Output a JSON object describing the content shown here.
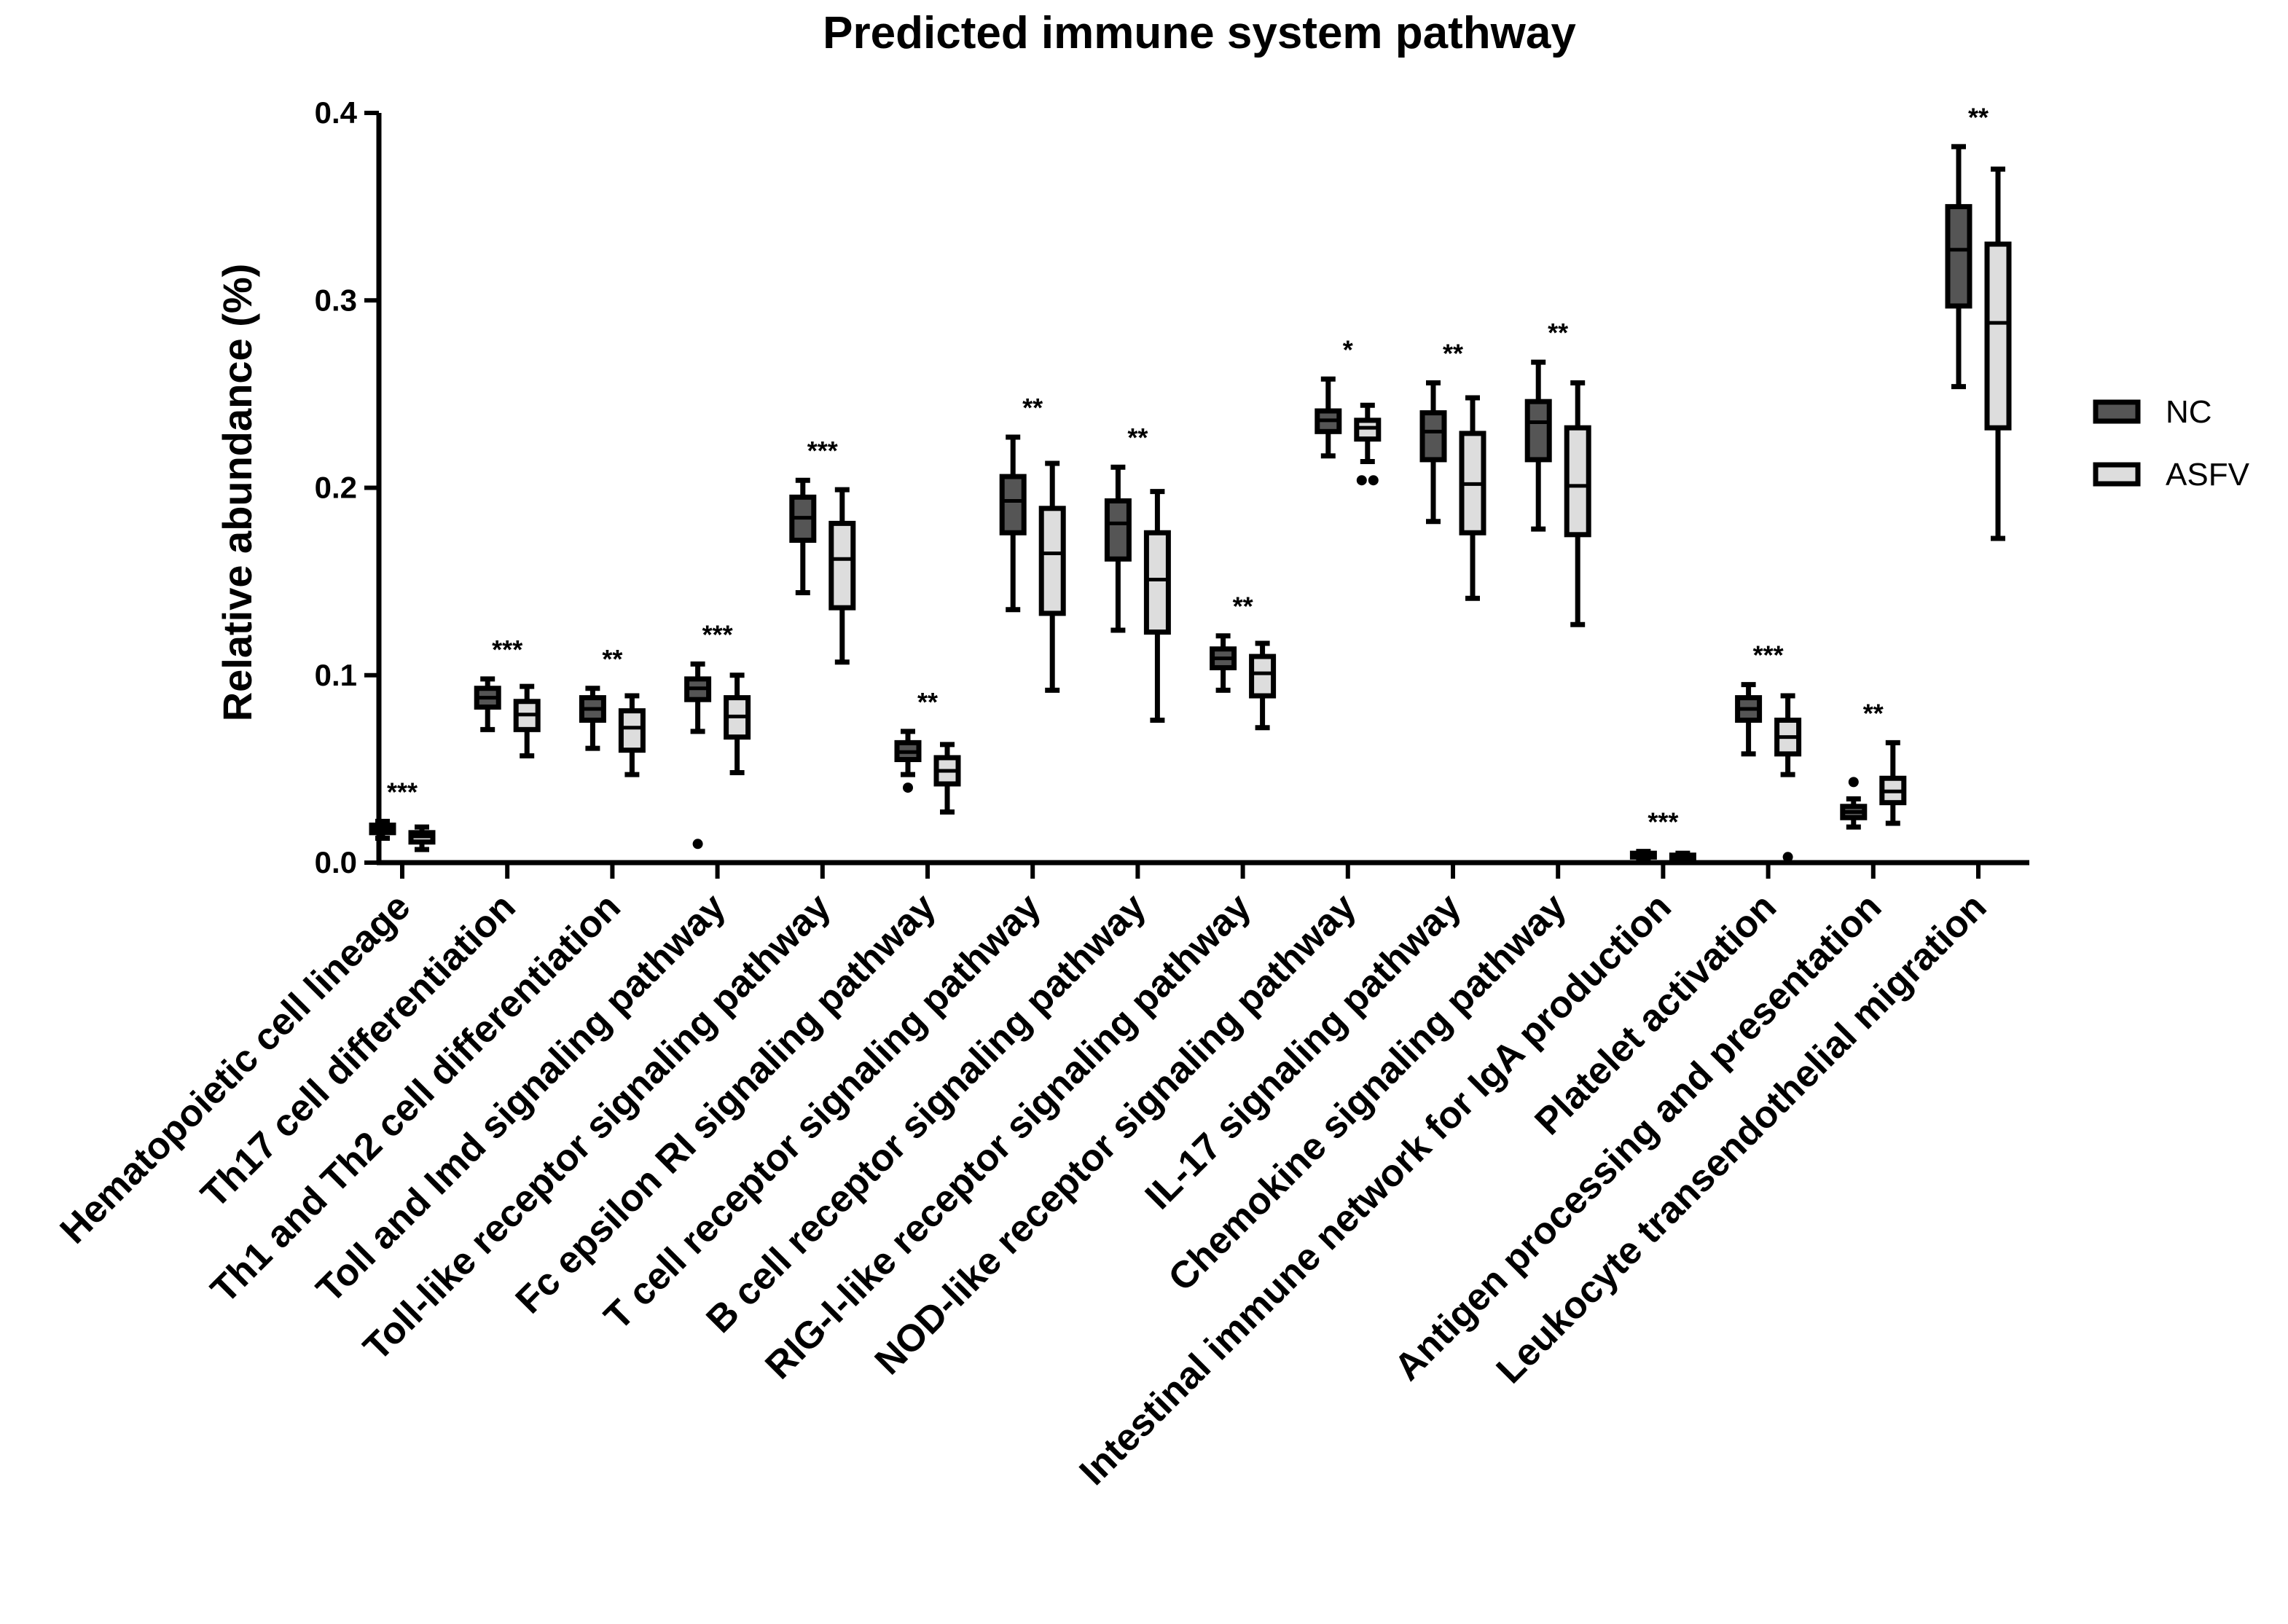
{
  "chart_data": {
    "type": "boxplot",
    "title": "Predicted immune system pathway",
    "xlabel": "",
    "ylabel": "Relative abundance (%)",
    "ylim": [
      0,
      0.4
    ],
    "yticks": [
      "0.0",
      "0.1",
      "0.2",
      "0.3",
      "0.4"
    ],
    "grid": false,
    "legend_position": "right",
    "categories": [
      "Hematopoietic cell lineage",
      "Th17 cell differentiation",
      "Th1 and Th2 cell differentiation",
      "Toll and Imd signaling pathway",
      "Toll-like receptor signaling pathway",
      "Fc epsilon RI signaling pathway",
      "T cell receptor signaling pathway",
      "B cell receptor signaling pathway",
      "RIG-I-like receptor signaling pathway",
      "NOD-like receptor signaling pathway",
      "IL-17 signaling pathway",
      "Chemokine signaling pathway",
      "Intestinal immune network for IgA production",
      "Platelet activation",
      "Antigen processing and presentation",
      "Leukocyte transendothelial migration"
    ],
    "significance": [
      "***",
      "***",
      "**",
      "***",
      "***",
      "**",
      "**",
      "**",
      "**",
      "*",
      "**",
      "**",
      "***",
      "***",
      "**",
      "**"
    ],
    "series": [
      {
        "name": "NC",
        "color": "#555555",
        "boxes": [
          {
            "min": 0.013,
            "q1": 0.016,
            "median": 0.018,
            "q3": 0.02,
            "max": 0.022,
            "outliers": []
          },
          {
            "min": 0.071,
            "q1": 0.083,
            "median": 0.088,
            "q3": 0.093,
            "max": 0.098,
            "outliers": []
          },
          {
            "min": 0.061,
            "q1": 0.076,
            "median": 0.082,
            "q3": 0.088,
            "max": 0.093,
            "outliers": []
          },
          {
            "min": 0.07,
            "q1": 0.087,
            "median": 0.093,
            "q3": 0.098,
            "max": 0.106,
            "outliers": [
              0.01
            ]
          },
          {
            "min": 0.144,
            "q1": 0.172,
            "median": 0.184,
            "q3": 0.195,
            "max": 0.204,
            "outliers": []
          },
          {
            "min": 0.047,
            "q1": 0.055,
            "median": 0.059,
            "q3": 0.064,
            "max": 0.07,
            "outliers": [
              0.04
            ]
          },
          {
            "min": 0.135,
            "q1": 0.176,
            "median": 0.193,
            "q3": 0.206,
            "max": 0.227,
            "outliers": []
          },
          {
            "min": 0.124,
            "q1": 0.162,
            "median": 0.181,
            "q3": 0.193,
            "max": 0.211,
            "outliers": []
          },
          {
            "min": 0.092,
            "q1": 0.104,
            "median": 0.109,
            "q3": 0.114,
            "max": 0.121,
            "outliers": []
          },
          {
            "min": 0.217,
            "q1": 0.23,
            "median": 0.236,
            "q3": 0.241,
            "max": 0.258,
            "outliers": []
          },
          {
            "min": 0.182,
            "q1": 0.215,
            "median": 0.23,
            "q3": 0.24,
            "max": 0.256,
            "outliers": []
          },
          {
            "min": 0.178,
            "q1": 0.215,
            "median": 0.235,
            "q3": 0.246,
            "max": 0.267,
            "outliers": []
          },
          {
            "min": 0.002,
            "q1": 0.003,
            "median": 0.004,
            "q3": 0.005,
            "max": 0.006,
            "outliers": []
          },
          {
            "min": 0.058,
            "q1": 0.076,
            "median": 0.082,
            "q3": 0.088,
            "max": 0.095,
            "outliers": []
          },
          {
            "min": 0.019,
            "q1": 0.024,
            "median": 0.027,
            "q3": 0.03,
            "max": 0.034,
            "outliers": [
              0.043
            ]
          },
          {
            "min": 0.254,
            "q1": 0.297,
            "median": 0.327,
            "q3": 0.35,
            "max": 0.382,
            "outliers": []
          }
        ]
      },
      {
        "name": "ASFV",
        "color": "#dddddd",
        "boxes": [
          {
            "min": 0.007,
            "q1": 0.011,
            "median": 0.014,
            "q3": 0.016,
            "max": 0.019,
            "outliers": []
          },
          {
            "min": 0.057,
            "q1": 0.071,
            "median": 0.079,
            "q3": 0.086,
            "max": 0.094,
            "outliers": []
          },
          {
            "min": 0.047,
            "q1": 0.06,
            "median": 0.072,
            "q3": 0.081,
            "max": 0.089,
            "outliers": []
          },
          {
            "min": 0.048,
            "q1": 0.067,
            "median": 0.078,
            "q3": 0.088,
            "max": 0.1,
            "outliers": []
          },
          {
            "min": 0.107,
            "q1": 0.136,
            "median": 0.162,
            "q3": 0.181,
            "max": 0.199,
            "outliers": []
          },
          {
            "min": 0.027,
            "q1": 0.042,
            "median": 0.049,
            "q3": 0.056,
            "max": 0.063,
            "outliers": []
          },
          {
            "min": 0.092,
            "q1": 0.133,
            "median": 0.165,
            "q3": 0.189,
            "max": 0.213,
            "outliers": []
          },
          {
            "min": 0.076,
            "q1": 0.123,
            "median": 0.151,
            "q3": 0.176,
            "max": 0.198,
            "outliers": []
          },
          {
            "min": 0.072,
            "q1": 0.089,
            "median": 0.101,
            "q3": 0.11,
            "max": 0.117,
            "outliers": []
          },
          {
            "min": 0.214,
            "q1": 0.226,
            "median": 0.232,
            "q3": 0.236,
            "max": 0.244,
            "outliers": [
              0.204,
              0.204
            ]
          },
          {
            "min": 0.141,
            "q1": 0.176,
            "median": 0.202,
            "q3": 0.229,
            "max": 0.248,
            "outliers": []
          },
          {
            "min": 0.127,
            "q1": 0.175,
            "median": 0.201,
            "q3": 0.232,
            "max": 0.256,
            "outliers": []
          },
          {
            "min": 0.001,
            "q1": 0.002,
            "median": 0.003,
            "q3": 0.004,
            "max": 0.005,
            "outliers": []
          },
          {
            "min": 0.047,
            "q1": 0.058,
            "median": 0.067,
            "q3": 0.076,
            "max": 0.089,
            "outliers": [
              0.003
            ]
          },
          {
            "min": 0.021,
            "q1": 0.032,
            "median": 0.038,
            "q3": 0.045,
            "max": 0.064,
            "outliers": []
          },
          {
            "min": 0.173,
            "q1": 0.232,
            "median": 0.288,
            "q3": 0.33,
            "max": 0.37,
            "outliers": []
          }
        ]
      }
    ]
  }
}
